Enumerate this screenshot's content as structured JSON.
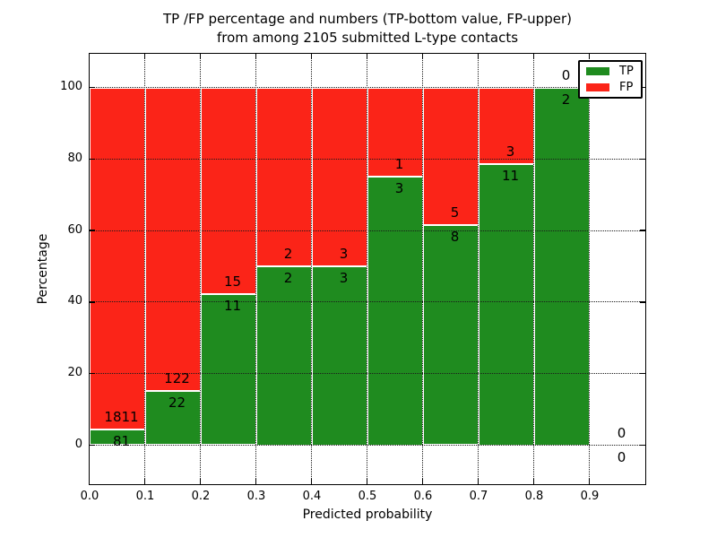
{
  "title": {
    "line1": "TP /FP percentage and numbers (TP-bottom value, FP-upper)",
    "line2": "from among 2105 submitted L-type contacts"
  },
  "axes": {
    "xlabel": "Predicted probability",
    "ylabel": "Percentage",
    "ytick_values": [
      0,
      20,
      40,
      60,
      80,
      100
    ],
    "ytick_labels": [
      "0",
      "20",
      "40",
      "60",
      "80",
      "100"
    ],
    "xtick_values": [
      0.0,
      0.1,
      0.2,
      0.3,
      0.4,
      0.5,
      0.6,
      0.7,
      0.8,
      0.9
    ],
    "xtick_labels": [
      "0.0",
      "0.1",
      "0.2",
      "0.3",
      "0.4",
      "0.5",
      "0.6",
      "0.7",
      "0.8",
      "0.9"
    ]
  },
  "legend": {
    "items": [
      {
        "label": "TP",
        "color": "#1f8b1f"
      },
      {
        "label": "FP",
        "color": "#fb2418"
      }
    ]
  },
  "chart_data": {
    "type": "bar",
    "stacked": true,
    "normalization": "percent of each bin (TP+FP = 100%)",
    "title": "TP /FP percentage and numbers (TP-bottom value, FP-upper) from among 2105 submitted L-type contacts",
    "xlabel": "Predicted probability",
    "ylabel": "Percentage",
    "bin_starts": [
      0.0,
      0.1,
      0.2,
      0.3,
      0.4,
      0.5,
      0.6,
      0.7,
      0.8,
      0.9
    ],
    "bin_width": 0.1,
    "series": [
      {
        "name": "TP",
        "color": "#1f8b1f",
        "counts": [
          81,
          22,
          11,
          2,
          3,
          3,
          8,
          11,
          2,
          0
        ]
      },
      {
        "name": "FP",
        "color": "#fb2418",
        "counts": [
          1811,
          122,
          15,
          2,
          3,
          1,
          5,
          3,
          0,
          0
        ]
      }
    ],
    "tp_percent_by_bin": [
      4.28,
      15.28,
      42.31,
      50.0,
      50.0,
      75.0,
      61.54,
      78.57,
      100.0,
      null
    ],
    "total_contacts": 2105,
    "xlim": [
      0.0,
      1.0
    ],
    "ylim": [
      -11,
      110
    ],
    "grid": "dotted, both axes",
    "legend_position": "upper right"
  }
}
